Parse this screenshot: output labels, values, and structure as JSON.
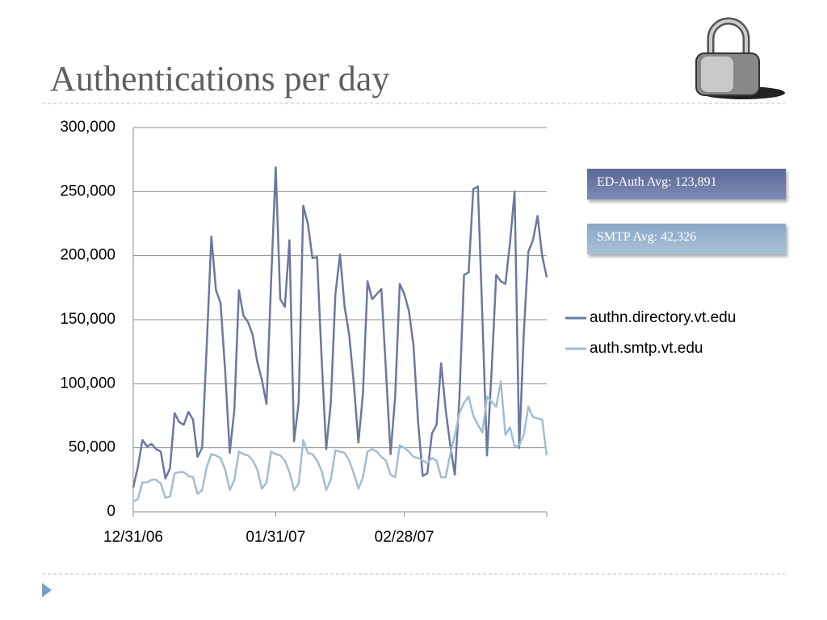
{
  "chart_data": {
    "type": "line",
    "title": "Authentications per day",
    "categories": [
      "12/31/06",
      null,
      null,
      null,
      null,
      null,
      null,
      null,
      null,
      null,
      null,
      null,
      null,
      null,
      null,
      null,
      null,
      null,
      null,
      null,
      null,
      null,
      null,
      null,
      null,
      null,
      null,
      null,
      null,
      null,
      null,
      "01/31/07",
      null,
      null,
      null,
      null,
      null,
      null,
      null,
      null,
      null,
      null,
      null,
      null,
      null,
      null,
      null,
      null,
      null,
      null,
      null,
      null,
      null,
      null,
      null,
      null,
      null,
      null,
      null,
      "02/28/07",
      null,
      null,
      null,
      null,
      null,
      null,
      null,
      null,
      null,
      null,
      null,
      null,
      null,
      null,
      null,
      null,
      null,
      null,
      null,
      null,
      null,
      null,
      null,
      null,
      null,
      null,
      null,
      null,
      null,
      null,
      null
    ],
    "series": [
      {
        "name": "authn.directory.vt.edu",
        "color": "#6b78a0",
        "values": [
          19000,
          35000,
          56000,
          51000,
          53000,
          49000,
          47000,
          26000,
          34000,
          77000,
          70000,
          68000,
          78000,
          72000,
          43000,
          50000,
          130000,
          215000,
          173000,
          163000,
          110000,
          46000,
          80000,
          173000,
          153000,
          148000,
          138000,
          117000,
          103000,
          84000,
          180000,
          269000,
          166000,
          160000,
          212000,
          55000,
          85000,
          239000,
          225000,
          198000,
          199000,
          120000,
          49000,
          85000,
          170000,
          201000,
          160000,
          138000,
          100000,
          54000,
          92000,
          180000,
          166000,
          170000,
          174000,
          110000,
          45000,
          90000,
          178000,
          170000,
          157000,
          130000,
          70000,
          28000,
          30000,
          61000,
          68000,
          116000,
          80000,
          52000,
          29000,
          90000,
          185000,
          187000,
          252000,
          254000,
          150000,
          44000,
          110000,
          185000,
          180000,
          178000,
          210000,
          250000,
          50000,
          140000,
          203000,
          212000,
          231000,
          200000,
          183000
        ]
      },
      {
        "name": "auth.smtp.vt.edu",
        "color": "#a3bdd2",
        "values": [
          8000,
          10000,
          23000,
          23000,
          25000,
          25000,
          22000,
          11000,
          12000,
          30000,
          31000,
          31000,
          28000,
          27000,
          14000,
          17000,
          35000,
          45000,
          44000,
          42000,
          33000,
          17000,
          25000,
          47000,
          45000,
          44000,
          40000,
          33000,
          18000,
          23000,
          47000,
          45000,
          44000,
          40000,
          31000,
          17000,
          22000,
          56000,
          46000,
          45000,
          40000,
          32000,
          17000,
          25000,
          48000,
          47000,
          46000,
          40000,
          30000,
          18000,
          27000,
          47000,
          49000,
          47000,
          43000,
          40000,
          29000,
          27000,
          52000,
          50000,
          47000,
          43000,
          42000,
          40000,
          38000,
          42000,
          40000,
          27000,
          27000,
          45000,
          60000,
          77000,
          85000,
          90000,
          75000,
          68000,
          62000,
          90000,
          86000,
          82000,
          102000,
          60000,
          66000,
          51000,
          52000,
          60000,
          82000,
          74000,
          73000,
          72000,
          44000
        ]
      }
    ],
    "annotations": [
      "ED-Auth Avg: 123,891",
      "SMTP Avg: 42,326"
    ],
    "ylim": [
      0,
      300000
    ],
    "yticks": [
      0,
      {
        "value": 50000,
        "label": "50,000"
      },
      {
        "value": 100000,
        "label": "100,000"
      },
      {
        "value": 150000,
        "label": "150,000"
      },
      {
        "value": 200000,
        "label": "200,000"
      },
      {
        "value": 250000,
        "label": "250,000"
      },
      {
        "value": 300000,
        "label": "300,000"
      }
    ],
    "grid": true,
    "legend": "right"
  }
}
